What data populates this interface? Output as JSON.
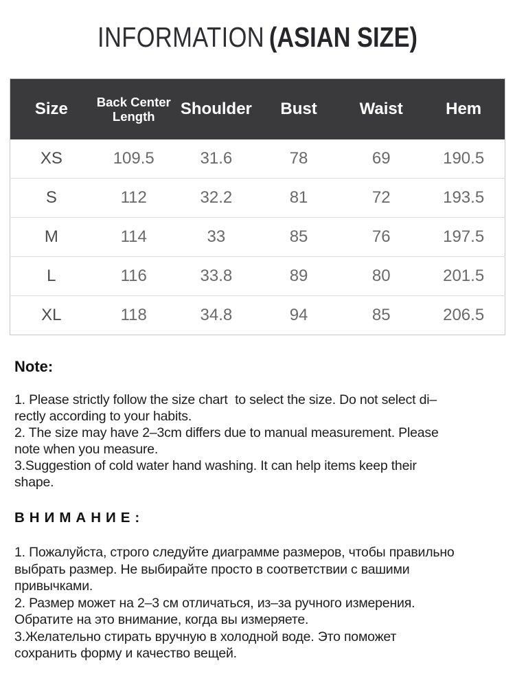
{
  "title": {
    "regular": "INFORMATION",
    "bold": "(ASIAN SIZE)"
  },
  "size_table": {
    "header_bg": "#3a3a3c",
    "header_text_color": "#ffffff",
    "columns": [
      "Size",
      "Back Center Length",
      "Shoulder",
      "Bust",
      "Waist",
      "Hem"
    ],
    "rows": [
      [
        "XS",
        "109.5",
        "31.6",
        "78",
        "69",
        "190.5"
      ],
      [
        "S",
        "112",
        "32.2",
        "81",
        "72",
        "193.5"
      ],
      [
        "M",
        "114",
        "33",
        "85",
        "76",
        "197.5"
      ],
      [
        "L",
        "116",
        "33.8",
        "89",
        "80",
        "201.5"
      ],
      [
        "XL",
        "118",
        "34.8",
        "94",
        "85",
        "206.5"
      ]
    ]
  },
  "note": {
    "heading": "Note:",
    "lines": [
      "1. Please strictly follow the size chart  to select the size. Do not select di–",
      "rectly according to your habits.",
      "2. The size may have 2–3cm differs due to manual measurement. Please",
      "note when you measure.",
      "3.Suggestion of cold water hand washing. It can help items keep their",
      "shape."
    ]
  },
  "attention": {
    "heading": "ВНИМАНИЕ:",
    "lines": [
      "1. Пожалуйста, строго следуйте диаграмме размеров, чтобы правильно",
      "выбрать размер. Не выбирайте просто в соответствии с вашими",
      "привычками.",
      "2. Размер может на 2–3 см отличаться, из–за ручного измерения.",
      "Обратите на это внимание, когда вы измеряете.",
      "3.Желательно стирать вручную в холодной воде. Это поможет",
      "сохранить форму и качество вещей."
    ]
  }
}
